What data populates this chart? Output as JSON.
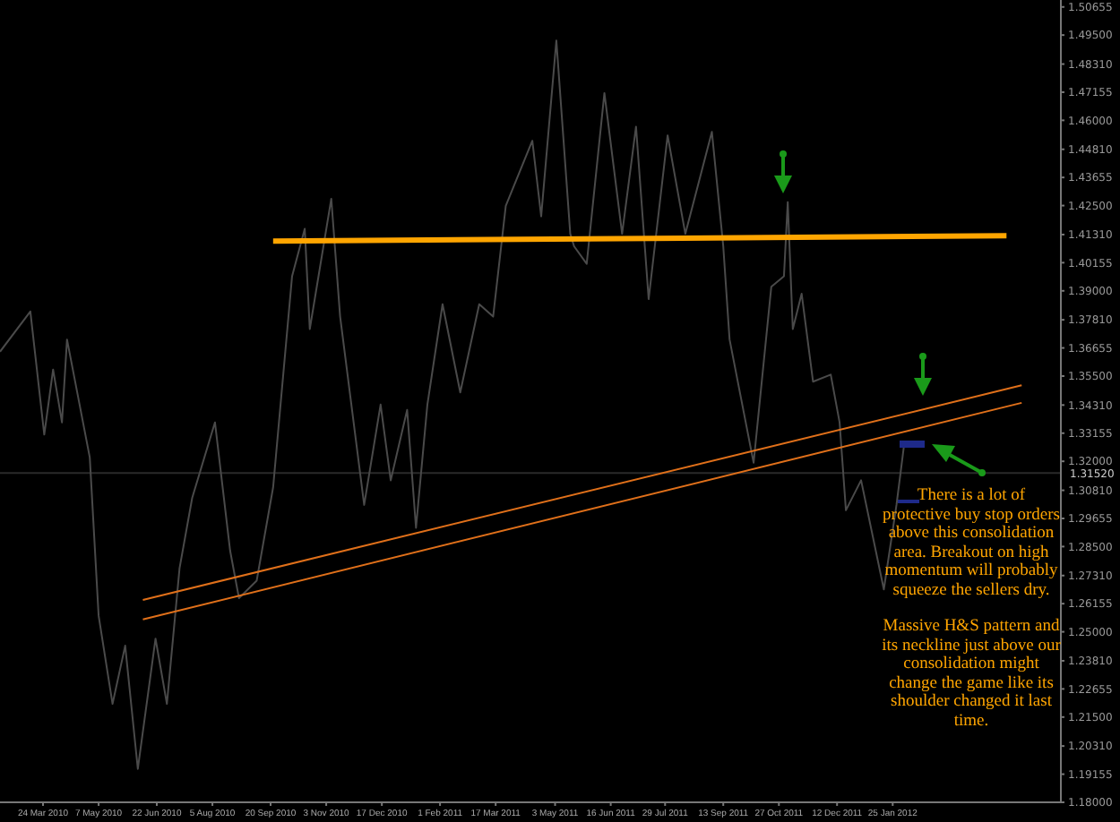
{
  "chart_data": {
    "type": "line",
    "series": [
      {
        "color": "#4a4a4a",
        "x": [
          "2010-02-18",
          "2010-03-14",
          "2010-03-25",
          "2010-04-01",
          "2010-04-08",
          "2010-04-12",
          "2010-04-30",
          "2010-05-07",
          "2010-05-18",
          "2010-05-28",
          "2010-06-07",
          "2010-06-21",
          "2010-06-30",
          "2010-07-10",
          "2010-07-20",
          "2010-08-07",
          "2010-08-19",
          "2010-08-26",
          "2010-09-09",
          "2010-09-22",
          "2010-10-07",
          "2010-10-17",
          "2010-10-21",
          "2010-11-07",
          "2010-11-14",
          "2010-12-03",
          "2010-12-16",
          "2010-12-24",
          "2011-01-06",
          "2011-01-13",
          "2011-01-22",
          "2011-02-03",
          "2011-02-17",
          "2011-03-04",
          "2011-03-15",
          "2011-03-25",
          "2011-04-15",
          "2011-04-22",
          "2011-05-04",
          "2011-05-15",
          "2011-05-18",
          "2011-05-28",
          "2011-06-11",
          "2011-06-25",
          "2011-07-06",
          "2011-07-16",
          "2011-07-31",
          "2011-08-14",
          "2011-09-04",
          "2011-09-13",
          "2011-09-18",
          "2011-10-07",
          "2011-10-21",
          "2011-10-31",
          "2011-11-03",
          "2011-11-07",
          "2011-11-14",
          "2011-11-23",
          "2011-12-07",
          "2011-12-14",
          "2011-12-19",
          "2011-12-31",
          "2012-01-18",
          "2012-01-28",
          "2012-02-03"
        ],
        "values": [
          1.365,
          1.3815,
          1.331,
          1.3577,
          1.336,
          1.37,
          1.3216,
          1.2566,
          1.2204,
          1.2443,
          1.1937,
          1.2472,
          1.2204,
          1.2761,
          1.305,
          1.336,
          1.2833,
          1.2638,
          1.271,
          1.3093,
          1.396,
          1.4155,
          1.3743,
          1.4278,
          1.3794,
          1.3021,
          1.3433,
          1.3122,
          1.3411,
          1.2927,
          1.3433,
          1.3845,
          1.3483,
          1.3845,
          1.3794,
          1.4249,
          1.4516,
          1.4206,
          1.4928,
          1.4134,
          1.4083,
          1.4011,
          1.4712,
          1.4134,
          1.4574,
          1.3866,
          1.4538,
          1.4134,
          1.4553,
          1.4083,
          1.37,
          1.3194,
          1.3917,
          1.396,
          1.4264,
          1.3743,
          1.3888,
          1.3527,
          1.3556,
          1.336,
          1.2999,
          1.3122,
          1.2674,
          1.3021,
          1.3267
        ]
      },
      {
        "color": "#ffa500",
        "x": [
          "2010-09-22",
          "2012-04-24"
        ],
        "values": [
          1.4104,
          1.4126
        ]
      },
      {
        "color": "#e0701a",
        "x": [
          "2010-06-11",
          "2012-05-06"
        ],
        "values": [
          1.2631,
          1.3512
        ]
      },
      {
        "color": "#e0701a",
        "x": [
          "2010-06-11",
          "2012-05-06"
        ],
        "values": [
          1.2551,
          1.344
        ]
      }
    ],
    "xlim": [
      "2010-02-18",
      "2012-06-06"
    ],
    "xticks": [
      {
        "value": "2010-03-24",
        "label": "24 Mar 2010"
      },
      {
        "value": "2010-05-07",
        "label": "7 May 2010"
      },
      {
        "value": "2010-06-22",
        "label": "22 Jun 2010"
      },
      {
        "value": "2010-08-05",
        "label": "5 Aug 2010"
      },
      {
        "value": "2010-09-20",
        "label": "20 Sep 2010"
      },
      {
        "value": "2010-11-03",
        "label": "3 Nov 2010"
      },
      {
        "value": "2010-12-17",
        "label": "17 Dec 2010"
      },
      {
        "value": "2011-02-01",
        "label": "1 Feb 2011"
      },
      {
        "value": "2011-03-17",
        "label": "17 Mar 2011"
      },
      {
        "value": "2011-05-03",
        "label": "3 May 2011"
      },
      {
        "value": "2011-06-16",
        "label": "16 Jun 2011"
      },
      {
        "value": "2011-07-29",
        "label": "29 Jul 2011"
      },
      {
        "value": "2011-09-13",
        "label": "13 Sep 2011"
      },
      {
        "value": "2011-10-27",
        "label": "27 Oct 2011"
      },
      {
        "value": "2011-12-12",
        "label": "12 Dec 2011"
      },
      {
        "value": "2012-01-25",
        "label": "25 Jan 2012"
      }
    ],
    "ylim": [
      1.18,
      1.5094
    ],
    "yticks": [
      {
        "value": 1.50655,
        "label": "1.50655"
      },
      {
        "value": 1.495,
        "label": "1.49500"
      },
      {
        "value": 1.4831,
        "label": "1.48310"
      },
      {
        "value": 1.47155,
        "label": "1.47155"
      },
      {
        "value": 1.46,
        "label": "1.46000"
      },
      {
        "value": 1.4481,
        "label": "1.44810"
      },
      {
        "value": 1.43655,
        "label": "1.43655"
      },
      {
        "value": 1.425,
        "label": "1.42500"
      },
      {
        "value": 1.4131,
        "label": "1.41310"
      },
      {
        "value": 1.40155,
        "label": "1.40155"
      },
      {
        "value": 1.39,
        "label": "1.39000"
      },
      {
        "value": 1.3781,
        "label": "1.37810"
      },
      {
        "value": 1.36655,
        "label": "1.36655"
      },
      {
        "value": 1.355,
        "label": "1.35500"
      },
      {
        "value": 1.3431,
        "label": "1.34310"
      },
      {
        "value": 1.33155,
        "label": "1.33155"
      },
      {
        "value": 1.32,
        "label": "1.32000"
      },
      {
        "value": 1.3081,
        "label": "1.30810"
      },
      {
        "value": 1.29655,
        "label": "1.29655"
      },
      {
        "value": 1.285,
        "label": "1.28500"
      },
      {
        "value": 1.2731,
        "label": "1.27310"
      },
      {
        "value": 1.26155,
        "label": "1.26155"
      },
      {
        "value": 1.25,
        "label": "1.25000"
      },
      {
        "value": 1.2381,
        "label": "1.23810"
      },
      {
        "value": 1.22655,
        "label": "1.22655"
      },
      {
        "value": 1.215,
        "label": "1.21500"
      },
      {
        "value": 1.2031,
        "label": "1.20310"
      },
      {
        "value": 1.19155,
        "label": "1.19155"
      },
      {
        "value": 1.18,
        "label": "1.18000"
      }
    ],
    "ref_lines": [
      {
        "axis": "y",
        "value": 1.3152,
        "label": "1.31520",
        "color": "#2a2a2a"
      }
    ],
    "annotations": [
      "There is a lot of protective buy stop orders above this consolidation area. Breakout on high momentum will probably squeeze the sellers dry.",
      "Massive H&S pattern and its neckline just above our consolidation might change the game like its shoulder changed it last time."
    ],
    "grid": false,
    "marker": "none",
    "line_style": "solid"
  }
}
